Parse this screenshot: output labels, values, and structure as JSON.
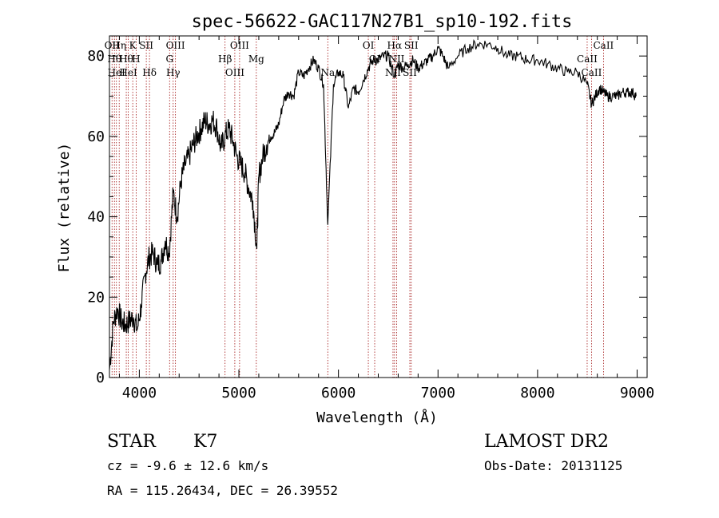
{
  "chart_data": {
    "type": "line",
    "title": "spec-56622-GAC117N27B1_sp10-192.fits",
    "xlabel": "Wavelength (Å)",
    "ylabel": "Flux (relative)",
    "xlim": [
      3700,
      9100
    ],
    "ylim": [
      0,
      85
    ],
    "xticks": [
      4000,
      5000,
      6000,
      7000,
      8000,
      9000
    ],
    "yticks": [
      0,
      20,
      40,
      60,
      80
    ],
    "grid": false,
    "line_color": "#000000",
    "marker_color": "#a01010",
    "series": [
      {
        "x": [
          3700,
          3740,
          3780,
          3820,
          3860,
          3900,
          3940,
          3980,
          4020,
          4060,
          4100,
          4140,
          4180,
          4220,
          4260,
          4300,
          4340,
          4380,
          4420,
          4460,
          4500,
          4540,
          4580,
          4620,
          4660,
          4700,
          4740,
          4780,
          4820,
          4860,
          4900,
          4940,
          4980,
          5020,
          5060,
          5100,
          5140,
          5180,
          5200,
          5240,
          5280,
          5320,
          5360,
          5400,
          5450,
          5500,
          5550,
          5600,
          5650,
          5700,
          5750,
          5800,
          5850,
          5893,
          5950,
          6000,
          6050,
          6100,
          6150,
          6200,
          6250,
          6300,
          6350,
          6400,
          6450,
          6500,
          6563,
          6600,
          6650,
          6700,
          6750,
          6800,
          6850,
          6900,
          6950,
          7000,
          7050,
          7100,
          7200,
          7300,
          7400,
          7500,
          7600,
          7700,
          7800,
          7900,
          8000,
          8100,
          8200,
          8300,
          8400,
          8498,
          8542,
          8580,
          8620,
          8662,
          8700,
          8750,
          8800,
          8850,
          8900,
          8950,
          8990
        ],
        "y": [
          2,
          14,
          17,
          14,
          13,
          14,
          15,
          12,
          18,
          26,
          30,
          31,
          28,
          29,
          34,
          31,
          46,
          40,
          49,
          53,
          55,
          58,
          60,
          62,
          64,
          63,
          64,
          62,
          57,
          60,
          62,
          59,
          55,
          53,
          51,
          47,
          44,
          32,
          50,
          55,
          58,
          60,
          61,
          63,
          69,
          71,
          70,
          76,
          75,
          77,
          79,
          77,
          73,
          38,
          73,
          76,
          75,
          67,
          72,
          71,
          74,
          77,
          79,
          79,
          80,
          80,
          75,
          78,
          77,
          78,
          79,
          77,
          78,
          79,
          80,
          82,
          80,
          77,
          80,
          82,
          83,
          83,
          82,
          80,
          80,
          79,
          79,
          78,
          77,
          76,
          76,
          73,
          68,
          70,
          72,
          71,
          70,
          70,
          70,
          71,
          71,
          71,
          70
        ]
      }
    ],
    "line_markers": [
      {
        "wave": 3726,
        "label": "OII"
      },
      {
        "wave": 3750,
        "label": "Hθ"
      },
      {
        "wave": 3770,
        "label": "HeI"
      },
      {
        "wave": 3798,
        "label": "Hη"
      },
      {
        "wave": 3869,
        "label": "Hθ"
      },
      {
        "wave": 3889,
        "label": "HeI"
      },
      {
        "wave": 3934,
        "label": "K"
      },
      {
        "wave": 3968,
        "label": "H"
      },
      {
        "wave": 4102,
        "label": "Hδ"
      },
      {
        "wave": 4070,
        "label": "SII"
      },
      {
        "wave": 4304,
        "label": "G"
      },
      {
        "wave": 4340,
        "label": "Hγ"
      },
      {
        "wave": 4363,
        "label": "OIII"
      },
      {
        "wave": 4861,
        "label": "Hβ"
      },
      {
        "wave": 4959,
        "label": "OIII"
      },
      {
        "wave": 5007,
        "label": "OIII"
      },
      {
        "wave": 5175,
        "label": "Mg"
      },
      {
        "wave": 5893,
        "label": "Na"
      },
      {
        "wave": 6300,
        "label": "OI"
      },
      {
        "wave": 6364,
        "label": "OI"
      },
      {
        "wave": 6548,
        "label": "NII"
      },
      {
        "wave": 6563,
        "label": "Hα"
      },
      {
        "wave": 6584,
        "label": "NII"
      },
      {
        "wave": 6717,
        "label": "SII"
      },
      {
        "wave": 6731,
        "label": "SII"
      },
      {
        "wave": 8498,
        "label": "CaII"
      },
      {
        "wave": 8542,
        "label": "CaII"
      },
      {
        "wave": 8662,
        "label": "CaII"
      }
    ]
  },
  "info": {
    "object_class": "STAR",
    "subclass": "K7",
    "survey": "LAMOST DR2",
    "cz": "cz = -9.6 ± 12.6 km/s",
    "obs_date": "Obs-Date: 20131125",
    "coords": "RA = 115.26434, DEC =  26.39552"
  }
}
